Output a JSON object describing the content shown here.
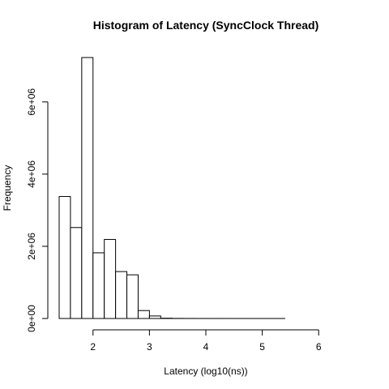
{
  "chart_data": {
    "type": "bar",
    "title": "Histogram of Latency (SyncClock Thread)",
    "xlabel": "Latency (log10(ns))",
    "ylabel": "Frequency",
    "bin_width": 0.2,
    "bins": [
      {
        "start": 1.4,
        "end": 1.6,
        "count": 3380000
      },
      {
        "start": 1.6,
        "end": 1.8,
        "count": 2520000
      },
      {
        "start": 1.8,
        "end": 2.0,
        "count": 7230000
      },
      {
        "start": 2.0,
        "end": 2.2,
        "count": 1820000
      },
      {
        "start": 2.2,
        "end": 2.4,
        "count": 2190000
      },
      {
        "start": 2.4,
        "end": 2.6,
        "count": 1300000
      },
      {
        "start": 2.6,
        "end": 2.8,
        "count": 1210000
      },
      {
        "start": 2.8,
        "end": 3.0,
        "count": 220000
      },
      {
        "start": 3.0,
        "end": 3.2,
        "count": 70000
      },
      {
        "start": 3.2,
        "end": 3.4,
        "count": 8000
      },
      {
        "start": 3.4,
        "end": 3.6,
        "count": 3000
      },
      {
        "start": 3.6,
        "end": 3.8,
        "count": 1500
      },
      {
        "start": 3.8,
        "end": 4.0,
        "count": 1000
      },
      {
        "start": 4.0,
        "end": 4.2,
        "count": 800
      },
      {
        "start": 4.2,
        "end": 4.4,
        "count": 600
      },
      {
        "start": 4.4,
        "end": 4.6,
        "count": 500
      },
      {
        "start": 4.6,
        "end": 4.8,
        "count": 400
      },
      {
        "start": 4.8,
        "end": 5.0,
        "count": 300
      },
      {
        "start": 5.0,
        "end": 5.2,
        "count": 200
      },
      {
        "start": 5.2,
        "end": 5.4,
        "count": 150
      },
      {
        "start": 5.4,
        "end": 5.6,
        "count": 100
      },
      {
        "start": 5.6,
        "end": 5.8,
        "count": 80
      },
      {
        "start": 5.8,
        "end": 6.0,
        "count": 60
      },
      {
        "start": 6.0,
        "end": 6.2,
        "count": 40
      },
      {
        "start": 6.2,
        "end": 6.4,
        "count": 30
      },
      {
        "start": 6.4,
        "end": 6.6,
        "count": 20
      }
    ],
    "x_ticks": [
      {
        "value": 2,
        "label": "2"
      },
      {
        "value": 3,
        "label": "3"
      },
      {
        "value": 4,
        "label": "4"
      },
      {
        "value": 5,
        "label": "5"
      },
      {
        "value": 6,
        "label": "6"
      }
    ],
    "y_ticks": [
      {
        "value": 0,
        "label": "0e+00"
      },
      {
        "value": 2000000,
        "label": "2e+06"
      },
      {
        "value": 4000000,
        "label": "4e+06"
      },
      {
        "value": 6000000,
        "label": "6e+06"
      }
    ],
    "xlim": [
      1.4,
      6.6
    ],
    "ylim": [
      0,
      7230000
    ],
    "grid": false,
    "bar_fill": "#ffffff",
    "bar_stroke": "#000000"
  }
}
